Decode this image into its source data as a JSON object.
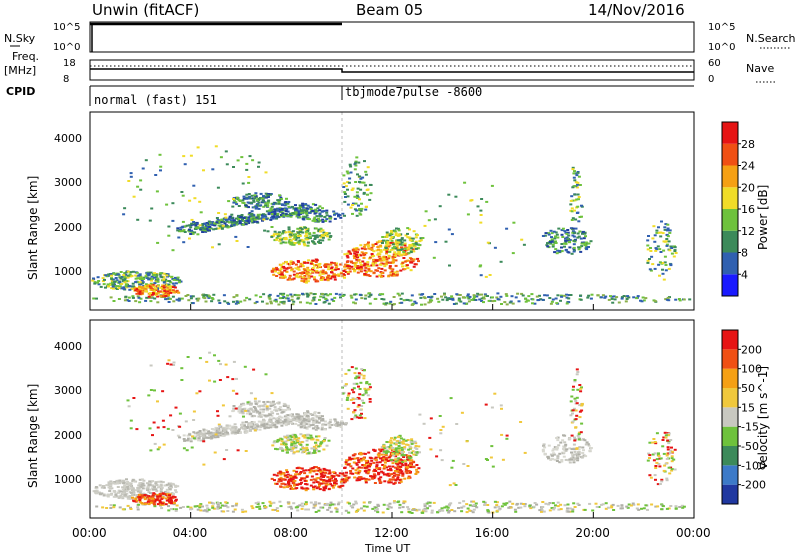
{
  "header": {
    "station": "Unwin (fitACF)",
    "beam": "Beam 05",
    "date": "14/Nov/2016"
  },
  "left_labels": {
    "nsky": "N.Sky",
    "freq": "Freq.",
    "freq_unit": "[MHz]",
    "cpid": "CPID"
  },
  "right_labels": {
    "nsearch": "N.Search",
    "nave": "Nave"
  },
  "cpid_text": {
    "left": "normal (fast) 151",
    "right": "tbjmode7pulse -8600"
  },
  "chart_data": [
    {
      "type": "line",
      "panel": "noise",
      "left_ticks": [
        "10^5",
        "10^0"
      ],
      "right_ticks": [
        "10^5",
        "10^0"
      ]
    },
    {
      "type": "line",
      "panel": "frequency-nave",
      "left_ticks": [
        "18",
        "8"
      ],
      "right_ticks": [
        "60",
        "0"
      ],
      "freq_series": {
        "x": [
          "00:00",
          "10:00",
          "10:00",
          "24:00"
        ],
        "y": [
          12.0,
          12.0,
          10.2,
          10.2
        ]
      },
      "nave_series": {
        "x": [
          "00:00",
          "24:00"
        ],
        "y": [
          27,
          27
        ]
      }
    },
    {
      "type": "heatmap",
      "panel": "power",
      "ylabel": "Slant Range [km]",
      "y_ticks": [
        "1000",
        "2000",
        "3000",
        "4000"
      ],
      "ylim": [
        200,
        4600
      ],
      "colorbar_label": "Power [dB]",
      "colorbar_ticks": [
        "4",
        "8",
        "12",
        "16",
        "20",
        "24",
        "28"
      ],
      "colorbar_colors": [
        "#1a1aff",
        "#3060b0",
        "#3c8a5a",
        "#6ec23c",
        "#f0dc28",
        "#f5a014",
        "#f05014",
        "#e61414"
      ]
    },
    {
      "type": "heatmap",
      "panel": "velocity",
      "ylabel": "Slant Range [km]",
      "y_ticks": [
        "1000",
        "2000",
        "3000",
        "4000"
      ],
      "ylim": [
        200,
        4600
      ],
      "colorbar_label": "Velocity [m s^-1]",
      "colorbar_ticks": [
        "200",
        "100",
        "50",
        "15",
        "-15",
        "-50",
        "-100",
        "-200"
      ],
      "colorbar_colors": [
        "#2038a0",
        "#3c7ac8",
        "#3c8a5a",
        "#6ec23c",
        "#c8c8c0",
        "#f0c83c",
        "#f5a014",
        "#f05014",
        "#e61414"
      ]
    }
  ],
  "xaxis": {
    "ticks": [
      "00:00",
      "04:00",
      "08:00",
      "12:00",
      "16:00",
      "20:00",
      "00:00"
    ],
    "label": "Time UT"
  }
}
